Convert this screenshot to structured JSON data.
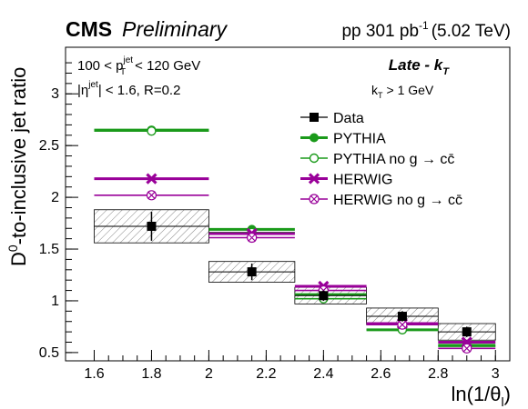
{
  "chart_data": {
    "type": "scatter",
    "header": {
      "experiment": "CMS",
      "status": "Preliminary",
      "lumi_prefix": "pp 301 pb",
      "lumi_exp": "-1",
      "lumi_suffix": "(5.02 TeV)"
    },
    "annotations": {
      "pt_prefix": "100 < p",
      "pt_sup": "jet",
      "pt_sub": "T",
      "pt_suffix": "< 120 GeV",
      "eta_prefix": "|η",
      "eta_sup": "jet",
      "eta_suffix": "| < 1.6, R=0.2",
      "grooming_main": "Late - k",
      "grooming_sub": "T",
      "kt_prefix": "k",
      "kt_sub": "T",
      "kt_suffix": "> 1 GeV"
    },
    "xlabel": "ln(1/θ",
    "xlabel_sub": "l",
    "xlabel_close": ")",
    "ylabel_D": "D",
    "ylabel_sup": "0",
    "ylabel_rest": "-to-inclusive jet ratio",
    "xlim": [
      1.5,
      3.05
    ],
    "ylim": [
      0.42,
      3.45
    ],
    "xticks": [
      1.6,
      1.8,
      2.0,
      2.2,
      2.4,
      2.6,
      2.8,
      3.0
    ],
    "xtick_labels": [
      "1.6",
      "1.8",
      "2",
      "2.2",
      "2.4",
      "2.6",
      "2.8",
      "3"
    ],
    "yticks": [
      0.5,
      1.0,
      1.5,
      2.0,
      2.5,
      3.0
    ],
    "ytick_labels": [
      "0.5",
      "1",
      "1.5",
      "2",
      "2.5",
      "3"
    ],
    "bins": [
      [
        1.6,
        2.0
      ],
      [
        2.0,
        2.3
      ],
      [
        2.3,
        2.55
      ],
      [
        2.55,
        2.8
      ],
      [
        2.8,
        3.0
      ]
    ],
    "series": [
      {
        "name": "Data",
        "color": "#000000",
        "marker": "square",
        "x": [
          1.8,
          2.15,
          2.4,
          2.675,
          2.9
        ],
        "y": [
          1.72,
          1.28,
          1.05,
          0.85,
          0.7
        ],
        "stat_err": [
          0.14,
          0.08,
          0.05,
          0.05,
          0.05
        ],
        "syst_err": [
          0.16,
          0.1,
          0.08,
          0.08,
          0.08
        ]
      },
      {
        "name": "PYTHIA",
        "color": "#1a9a1a",
        "marker": "circle",
        "x": [
          1.8,
          2.15,
          2.4,
          2.675,
          2.9
        ],
        "y": [
          2.65,
          1.69,
          1.06,
          0.72,
          0.57
        ]
      },
      {
        "name": "PYTHIA no g → cc̄",
        "color": "#1a9a1a",
        "marker": "open-circle",
        "x": [
          1.8,
          2.15,
          2.4,
          2.675,
          2.9
        ],
        "y": [
          2.64,
          1.66,
          1.02,
          0.72,
          0.56
        ]
      },
      {
        "name": "HERWIG",
        "color": "#990099",
        "marker": "cross",
        "x": [
          1.8,
          2.15,
          2.4,
          2.675,
          2.9
        ],
        "y": [
          2.18,
          1.65,
          1.14,
          0.78,
          0.6
        ]
      },
      {
        "name": "HERWIG no g → cc̄",
        "color": "#990099",
        "marker": "open-cross",
        "x": [
          1.8,
          2.15,
          2.4,
          2.675,
          2.9
        ],
        "y": [
          2.02,
          1.61,
          1.1,
          0.77,
          0.54
        ]
      }
    ],
    "legend": "center-right",
    "grid": false
  }
}
